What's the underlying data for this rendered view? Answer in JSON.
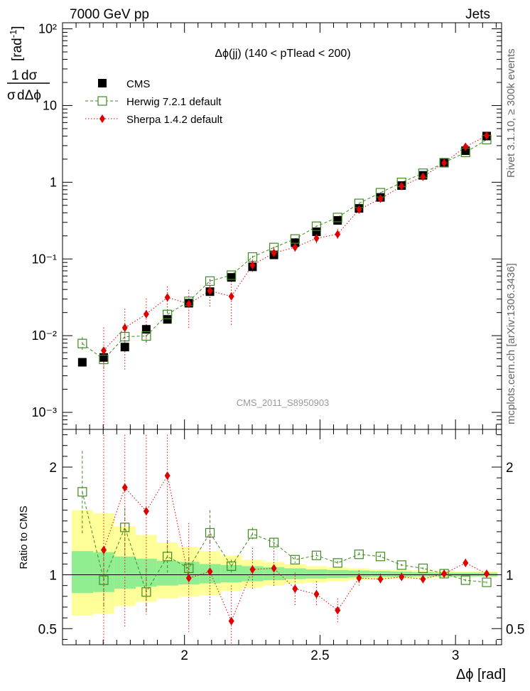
{
  "header": {
    "left": "7000 GeV pp",
    "right": "Jets"
  },
  "side_labels": {
    "rivet": "Rivet 3.1.10, ≥ 300k events",
    "site": "mcplots.cern.ch [arXiv:1306.3436]"
  },
  "chart_data": [
    {
      "type": "scatter",
      "panel": "main",
      "title": "Δϕ(jj) (140 < pTlead <  200)",
      "analysis_label": "CMS_2011_S8950903",
      "ylabel": "1/σ dσ/dΔϕ [rad⁻¹]",
      "yscale": "log",
      "xlim": [
        1.55,
        3.17
      ],
      "ylim": [
        0.0006,
        120
      ],
      "ytick_labels": [
        "10⁻³",
        "10⁻²",
        "10⁻¹",
        "1",
        "10",
        "10²"
      ],
      "legend_position": "top-left",
      "x": [
        1.623,
        1.702,
        1.78,
        1.859,
        1.937,
        2.016,
        2.094,
        2.173,
        2.251,
        2.33,
        2.408,
        2.487,
        2.565,
        2.644,
        2.723,
        2.801,
        2.88,
        2.958,
        3.037,
        3.115
      ],
      "series": [
        {
          "name": "CMS",
          "color": "#000000",
          "marker": "filled-square",
          "values": [
            0.0045,
            0.0052,
            0.0071,
            0.0121,
            0.0163,
            0.0265,
            0.0375,
            0.0575,
            0.079,
            0.113,
            0.163,
            0.226,
            0.318,
            0.456,
            0.635,
            0.905,
            1.23,
            1.78,
            2.58,
            4.0
          ]
        },
        {
          "name": "Herwig 7.2.1 default",
          "color": "#3f8a1f",
          "marker": "open-square",
          "line": "dashed",
          "values": [
            0.0079,
            0.0049,
            0.0097,
            0.0099,
            0.0189,
            0.028,
            0.0515,
            0.0615,
            0.106,
            0.141,
            0.182,
            0.267,
            0.347,
            0.53,
            0.73,
            0.995,
            1.31,
            1.8,
            2.45,
            3.6
          ],
          "error_low": [
            0.0062,
            0.0036,
            0.0079,
            0.0079,
            0.0165,
            0.0255,
            0.048,
            0.058,
            0.102,
            0.137,
            0.178,
            0.262,
            0.341,
            0.522,
            0.72,
            0.98,
            1.29,
            1.77,
            2.41,
            3.55
          ],
          "error_high": [
            0.0096,
            0.0063,
            0.0115,
            0.0119,
            0.0213,
            0.0305,
            0.055,
            0.065,
            0.11,
            0.145,
            0.186,
            0.272,
            0.353,
            0.538,
            0.74,
            1.01,
            1.33,
            1.83,
            2.49,
            3.65
          ]
        },
        {
          "name": "Sherpa 1.4.2 default",
          "color": "#e00000",
          "marker": "filled-diamond",
          "line": "dotted",
          "values": [
            null,
            0.0064,
            0.0127,
            0.0191,
            0.0315,
            0.026,
            0.0385,
            0.0325,
            0.083,
            0.12,
            0.142,
            0.186,
            0.21,
            0.44,
            0.61,
            0.89,
            1.18,
            1.79,
            2.9,
            4.05
          ],
          "error_low": [
            null,
            0.0004,
            0.0036,
            0.0077,
            0.0195,
            0.0125,
            0.0235,
            0.0135,
            0.068,
            0.1,
            0.118,
            0.16,
            0.175,
            0.41,
            0.575,
            0.85,
            1.13,
            1.73,
            2.8,
            3.92
          ],
          "error_high": [
            null,
            0.0128,
            0.0225,
            0.0305,
            0.0437,
            0.0395,
            0.0535,
            0.0515,
            0.098,
            0.14,
            0.166,
            0.212,
            0.245,
            0.47,
            0.645,
            0.93,
            1.23,
            1.85,
            3.0,
            4.18
          ]
        }
      ]
    },
    {
      "type": "scatter",
      "panel": "ratio",
      "ylabel": "Ratio to CMS",
      "xlabel": "Δϕ [rad]",
      "xlim": [
        1.55,
        3.17
      ],
      "ylim": [
        0.35,
        2.35
      ],
      "xtick_labels": [
        "2",
        "2.5",
        "3"
      ],
      "ytick_labels": [
        "0.5",
        "1",
        "2"
      ],
      "reference_line": 1,
      "uncertainty_bands": {
        "x_edges": [
          1.584,
          1.663,
          1.741,
          1.82,
          1.898,
          1.977,
          2.055,
          2.134,
          2.212,
          2.291,
          2.369,
          2.448,
          2.526,
          2.605,
          2.683,
          2.762,
          2.84,
          2.919,
          2.997,
          3.076,
          3.155
        ],
        "outer": {
          "color": "#ffff99",
          "low": [
            0.62,
            0.64,
            0.71,
            0.75,
            0.78,
            0.8,
            0.81,
            0.85,
            0.88,
            0.9,
            0.92,
            0.93,
            0.94,
            0.95,
            0.96,
            0.965,
            0.97,
            0.975,
            0.975,
            0.98
          ],
          "high": [
            1.6,
            1.57,
            1.45,
            1.37,
            1.3,
            1.26,
            1.22,
            1.18,
            1.14,
            1.12,
            1.1,
            1.08,
            1.07,
            1.06,
            1.05,
            1.045,
            1.04,
            1.035,
            1.03,
            1.03
          ]
        },
        "inner": {
          "color": "#90ee90",
          "low": [
            0.83,
            0.84,
            0.87,
            0.89,
            0.9,
            0.91,
            0.92,
            0.93,
            0.94,
            0.95,
            0.96,
            0.965,
            0.97,
            0.975,
            0.98,
            0.98,
            0.985,
            0.985,
            0.985,
            0.985
          ],
          "high": [
            1.22,
            1.21,
            1.17,
            1.15,
            1.13,
            1.12,
            1.1,
            1.09,
            1.08,
            1.07,
            1.06,
            1.05,
            1.045,
            1.04,
            1.035,
            1.03,
            1.025,
            1.02,
            1.02,
            1.02
          ]
        }
      },
      "x": [
        1.623,
        1.702,
        1.78,
        1.859,
        1.937,
        2.016,
        2.094,
        2.173,
        2.251,
        2.33,
        2.408,
        2.487,
        2.565,
        2.644,
        2.723,
        2.801,
        2.88,
        2.958,
        3.037,
        3.115
      ],
      "series": [
        {
          "name": "Herwig 7.2.1 default",
          "color": "#3f8a1f",
          "marker": "open-square",
          "line": "dashed",
          "values": [
            1.77,
            0.95,
            1.44,
            0.84,
            1.17,
            1.06,
            1.39,
            1.08,
            1.38,
            1.3,
            1.14,
            1.18,
            1.11,
            1.19,
            1.17,
            1.09,
            1.06,
            1.01,
            0.95,
            0.93
          ],
          "error_low": [
            1.38,
            0.7,
            1.17,
            0.65,
            1.02,
            0.96,
            1.29,
            1.01,
            1.33,
            1.26,
            1.11,
            1.15,
            1.09,
            1.17,
            1.15,
            1.08,
            1.05,
            1.0,
            0.94,
            0.92
          ],
          "error_high": [
            2.15,
            1.2,
            1.62,
            1.06,
            1.32,
            1.16,
            1.6,
            1.14,
            1.44,
            1.34,
            1.17,
            1.21,
            1.13,
            1.21,
            1.19,
            1.1,
            1.07,
            1.02,
            0.96,
            0.94
          ]
        },
        {
          "name": "Sherpa 1.4.2 default",
          "color": "#e00000",
          "marker": "filled-diamond",
          "line": "dotted",
          "values": [
            null,
            1.23,
            1.81,
            1.59,
            1.92,
            0.97,
            1.03,
            0.57,
            1.05,
            1.06,
            0.87,
            0.82,
            0.67,
            0.97,
            0.96,
            0.98,
            0.96,
            1.01,
            1.11,
            1.01
          ],
          "error_low": [
            null,
            0.0,
            0.52,
            0.63,
            1.19,
            0.47,
            0.63,
            0.24,
            0.86,
            0.88,
            0.72,
            0.71,
            0.56,
            0.9,
            0.91,
            0.94,
            0.92,
            0.97,
            1.07,
            0.98
          ],
          "error_high": [
            null,
            2.3,
            2.3,
            2.3,
            2.3,
            1.48,
            1.43,
            0.9,
            1.25,
            1.25,
            1.02,
            0.94,
            0.78,
            1.04,
            1.01,
            1.02,
            1.0,
            1.05,
            1.15,
            1.04
          ]
        }
      ]
    }
  ]
}
